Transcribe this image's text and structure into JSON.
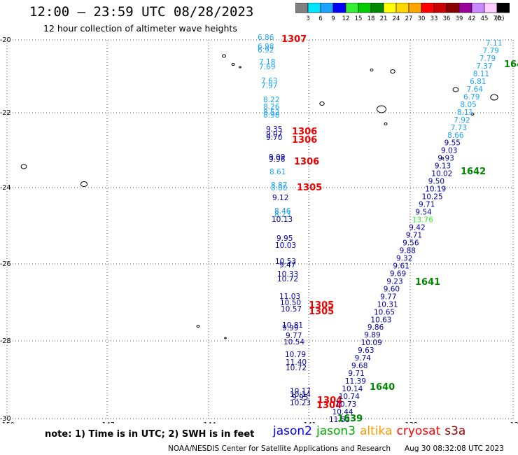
{
  "title": "12:00 — 23:59 UTC 08/28/2023",
  "subtitle": "12 hour collection of altimeter wave heights",
  "colorbar": {
    "labels": [
      "3",
      "6",
      "9",
      "12",
      "15",
      "18",
      "21",
      "24",
      "27",
      "30",
      "33",
      "36",
      "39",
      "42",
      "45",
      "70",
      "(ft)"
    ],
    "colors": [
      "#808080",
      "#00e5ff",
      "#1aa3ff",
      "#0000ff",
      "#33ee33",
      "#00cc00",
      "#008800",
      "#ffff00",
      "#ffd700",
      "#ffa500",
      "#ff0000",
      "#cc0000",
      "#880000",
      "#990099",
      "#cc88ff",
      "#ffccff",
      "#000000"
    ]
  },
  "axes": {
    "lat_labels": [
      "-20",
      "-22",
      "-24",
      "-26",
      "-28",
      "-30"
    ],
    "lon_labels": [
      "-150",
      "-147",
      "-144",
      "-141",
      "-138",
      "-13"
    ]
  },
  "track1": {
    "color_light": "#1aa3ff",
    "color_dark": "#0000aa",
    "labels": [
      {
        "t": "6.86",
        "c": "l"
      },
      {
        "t": "6.98",
        "c": "l"
      },
      {
        "t": "6.92",
        "c": "l"
      },
      {
        "t": "7.18",
        "c": "l"
      },
      {
        "t": "7.69",
        "c": "l"
      },
      {
        "t": "7.63",
        "c": "l"
      },
      {
        "t": "7.97",
        "c": "l"
      },
      {
        "t": "8.22",
        "c": "l"
      },
      {
        "t": "8.26",
        "c": "l"
      },
      {
        "t": "8.52",
        "c": "l"
      },
      {
        "t": "8.98",
        "c": "l"
      },
      {
        "t": "9.35",
        "c": "d"
      },
      {
        "t": "9.07",
        "c": "d"
      },
      {
        "t": "9.70",
        "c": "d"
      },
      {
        "t": "9.09",
        "c": "d"
      },
      {
        "t": "9.96",
        "c": "d"
      },
      {
        "t": "8.61",
        "c": "l"
      },
      {
        "t": "8.87",
        "c": "l"
      },
      {
        "t": "8.80",
        "c": "l"
      },
      {
        "t": "9.12",
        "c": "d"
      },
      {
        "t": "8.46",
        "c": "l"
      },
      {
        "t": "8.23",
        "c": "l"
      },
      {
        "t": "10.13",
        "c": "d"
      },
      {
        "t": "9.95",
        "c": "d"
      },
      {
        "t": "10.03",
        "c": "d"
      },
      {
        "t": "10.53",
        "c": "d"
      },
      {
        "t": "9.47",
        "c": "d"
      },
      {
        "t": "10.33",
        "c": "d"
      },
      {
        "t": "10.72",
        "c": "d"
      },
      {
        "t": "11.03",
        "c": "d"
      },
      {
        "t": "10.50",
        "c": "d"
      },
      {
        "t": "10.57",
        "c": "d"
      },
      {
        "t": "10.81",
        "c": "d"
      },
      {
        "t": "9.99",
        "c": "d"
      },
      {
        "t": "9.77",
        "c": "d"
      },
      {
        "t": "10.54",
        "c": "d"
      },
      {
        "t": "10.79",
        "c": "d"
      },
      {
        "t": "11.40",
        "c": "d"
      },
      {
        "t": "10.72",
        "c": "d"
      },
      {
        "t": "10.17",
        "c": "d"
      },
      {
        "t": "10.14",
        "c": "d"
      },
      {
        "t": "9.95",
        "c": "d"
      },
      {
        "t": "10.23",
        "c": "d"
      }
    ],
    "pass_labels": [
      "1307",
      "1306",
      "1306",
      "1306",
      "1305",
      "1305",
      "1305",
      "1304",
      "1304"
    ]
  },
  "track2": {
    "color_light": "#1aa3ff",
    "color_dark": "#0000aa",
    "color_green": "#33ee33",
    "labels": [
      {
        "t": "7.11",
        "c": "l"
      },
      {
        "t": "7.79",
        "c": "l"
      },
      {
        "t": "7.79",
        "c": "l"
      },
      {
        "t": "7.37",
        "c": "l"
      },
      {
        "t": "8.11",
        "c": "l"
      },
      {
        "t": "6.81",
        "c": "l"
      },
      {
        "t": "7.64",
        "c": "l"
      },
      {
        "t": "6.79",
        "c": "l"
      },
      {
        "t": "8.05",
        "c": "l"
      },
      {
        "t": "8.11",
        "c": "l"
      },
      {
        "t": "7.92",
        "c": "l"
      },
      {
        "t": "7.73",
        "c": "l"
      },
      {
        "t": "8.66",
        "c": "l"
      },
      {
        "t": "9.55",
        "c": "d"
      },
      {
        "t": "9.03",
        "c": "d"
      },
      {
        "t": "9.93",
        "c": "d"
      },
      {
        "t": "9.13",
        "c": "d"
      },
      {
        "t": "10.02",
        "c": "d"
      },
      {
        "t": "9.50",
        "c": "d"
      },
      {
        "t": "10.19",
        "c": "d"
      },
      {
        "t": "10.25",
        "c": "d"
      },
      {
        "t": "9.71",
        "c": "d"
      },
      {
        "t": "9.54",
        "c": "d"
      },
      {
        "t": "13.76",
        "c": "g"
      },
      {
        "t": "9.42",
        "c": "d"
      },
      {
        "t": "9.71",
        "c": "d"
      },
      {
        "t": "9.56",
        "c": "d"
      },
      {
        "t": "9.88",
        "c": "d"
      },
      {
        "t": "9.32",
        "c": "d"
      },
      {
        "t": "9.61",
        "c": "d"
      },
      {
        "t": "9.69",
        "c": "d"
      },
      {
        "t": "9.23",
        "c": "d"
      },
      {
        "t": "9.60",
        "c": "d"
      },
      {
        "t": "9.77",
        "c": "d"
      },
      {
        "t": "10.31",
        "c": "d"
      },
      {
        "t": "10.65",
        "c": "d"
      },
      {
        "t": "10.63",
        "c": "d"
      },
      {
        "t": "9.86",
        "c": "d"
      },
      {
        "t": "9.89",
        "c": "d"
      },
      {
        "t": "10.09",
        "c": "d"
      },
      {
        "t": "9.63",
        "c": "d"
      },
      {
        "t": "9.74",
        "c": "d"
      },
      {
        "t": "9.68",
        "c": "d"
      },
      {
        "t": "9.71",
        "c": "d"
      },
      {
        "t": "11.39",
        "c": "d"
      },
      {
        "t": "10.14",
        "c": "d"
      },
      {
        "t": "10.74",
        "c": "d"
      },
      {
        "t": "10.73",
        "c": "d"
      },
      {
        "t": "10.44",
        "c": "d"
      },
      {
        "t": "11.53",
        "c": "d"
      }
    ],
    "pass_labels": [
      "164",
      "1642",
      "1641",
      "1640",
      "1639"
    ]
  },
  "note": "note: 1) Time is in UTC; 2) SWH is in feet",
  "satellites": [
    {
      "name": "jason2",
      "color": "#0000ff"
    },
    {
      "name": "jason3",
      "color": "#00aa00"
    },
    {
      "name": "altika",
      "color": "#ff9900"
    },
    {
      "name": "cryosat",
      "color": "#ff0000"
    },
    {
      "name": "s3a",
      "color": "#990000"
    }
  ],
  "footer": "NOAA/NESDIS Center for Satellite Applications and Research",
  "timestamp": "Aug 30 08:32:08 UTC 2023"
}
